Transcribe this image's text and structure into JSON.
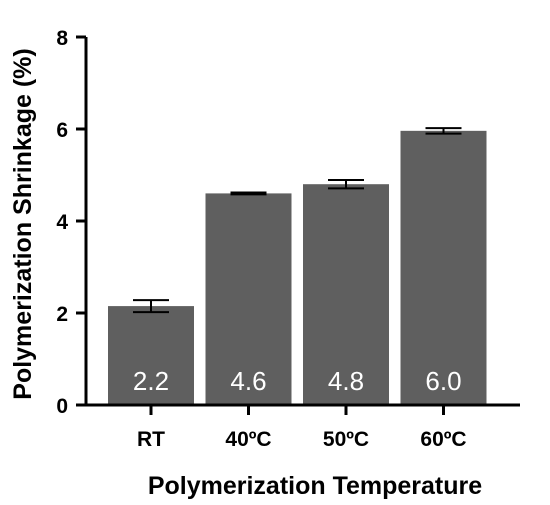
{
  "chart_data": {
    "type": "bar",
    "title": "",
    "xlabel": "Polymerization Temperature",
    "ylabel": "Polymerization Shrinkage (%)",
    "categories": [
      "RT",
      "40ºC",
      "50ºC",
      "60ºC"
    ],
    "values": [
      2.15,
      4.6,
      4.8,
      5.96
    ],
    "errors": [
      0.13,
      0.02,
      0.09,
      0.06
    ],
    "data_labels": [
      "2.2",
      "4.6",
      "4.8",
      "6.0"
    ],
    "ylim": [
      0,
      8
    ],
    "yticks": [
      0,
      2,
      4,
      6,
      8
    ],
    "grid": false,
    "legend": "none",
    "bar_color": "#5f5f5f",
    "axis_color": "#000000",
    "data_label_color": "#ffffff"
  }
}
